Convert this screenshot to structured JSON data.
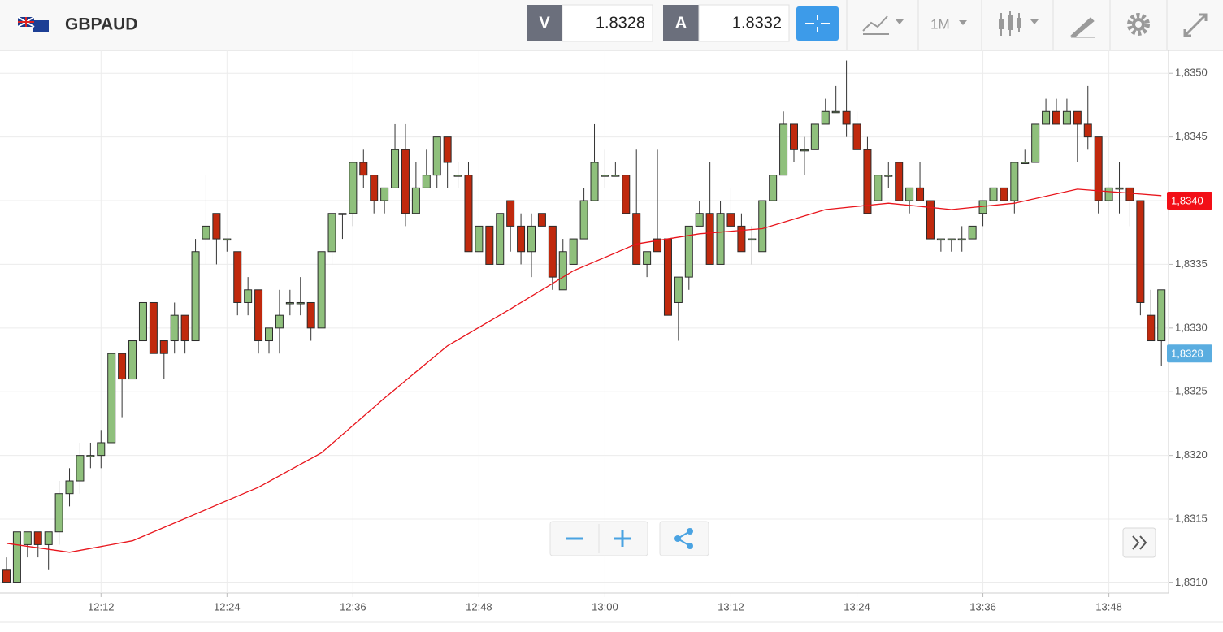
{
  "header": {
    "pair": "GBPAUD",
    "bid_label": "V",
    "bid": "1.8328",
    "ask_label": "A",
    "ask": "1.8332",
    "timeframe": "1M"
  },
  "chart_data": {
    "type": "candlestick",
    "x": [
      "12:03",
      "12:04",
      "12:05",
      "12:06",
      "12:07",
      "12:08",
      "12:09",
      "12:10",
      "12:11",
      "12:12",
      "12:13",
      "12:14",
      "12:15",
      "12:16",
      "12:17",
      "12:18",
      "12:19",
      "12:20",
      "12:21",
      "12:22",
      "12:23",
      "12:24",
      "12:25",
      "12:26",
      "12:27",
      "12:28",
      "12:29",
      "12:30",
      "12:31",
      "12:32",
      "12:33",
      "12:34",
      "12:35",
      "12:36",
      "12:37",
      "12:38",
      "12:39",
      "12:40",
      "12:41",
      "12:42",
      "12:43",
      "12:44",
      "12:45",
      "12:46",
      "12:47",
      "12:48",
      "12:49",
      "12:50",
      "12:51",
      "12:52",
      "12:53",
      "12:54",
      "12:55",
      "12:56",
      "12:57",
      "12:58",
      "12:59",
      "13:00",
      "13:01",
      "13:02",
      "13:03",
      "13:04",
      "13:05",
      "13:06",
      "13:07",
      "13:08",
      "13:09",
      "13:10",
      "13:11",
      "13:12",
      "13:13",
      "13:14",
      "13:15",
      "13:16",
      "13:17",
      "13:18",
      "13:19",
      "13:20",
      "13:21",
      "13:22",
      "13:23",
      "13:24",
      "13:25",
      "13:26",
      "13:27",
      "13:28",
      "13:29",
      "13:30",
      "13:31",
      "13:32",
      "13:33",
      "13:34",
      "13:35",
      "13:36",
      "13:37",
      "13:38",
      "13:39",
      "13:40",
      "13:41",
      "13:42",
      "13:43",
      "13:44",
      "13:45",
      "13:46",
      "13:47",
      "13:48",
      "13:49",
      "13:50",
      "13:51",
      "13:52",
      "13:53"
    ],
    "open": [
      1.8311,
      1.831,
      1.8313,
      1.8314,
      1.8313,
      1.8314,
      1.8317,
      1.8318,
      1.832,
      1.832,
      1.8321,
      1.8328,
      1.8326,
      1.8329,
      1.8332,
      1.8329,
      1.8329,
      1.8331,
      1.8329,
      1.8337,
      1.8339,
      1.8337,
      1.8336,
      1.8332,
      1.8333,
      1.8329,
      1.833,
      1.8332,
      1.8332,
      1.8332,
      1.833,
      1.8336,
      1.8339,
      1.8339,
      1.8343,
      1.8342,
      1.834,
      1.8341,
      1.8344,
      1.8339,
      1.8341,
      1.8342,
      1.8345,
      1.8342,
      1.8342,
      1.8336,
      1.8338,
      1.8335,
      1.834,
      1.8338,
      1.8336,
      1.8339,
      1.8338,
      1.8333,
      1.8335,
      1.8337,
      1.834,
      1.8342,
      1.8342,
      1.8342,
      1.8339,
      1.8335,
      1.8337,
      1.8337,
      1.8332,
      1.8334,
      1.8338,
      1.8339,
      1.8335,
      1.8339,
      1.8338,
      1.8337,
      1.8336,
      1.834,
      1.8342,
      1.8346,
      1.8344,
      1.8344,
      1.8346,
      1.8347,
      1.8347,
      1.8346,
      1.8344,
      1.834,
      1.8342,
      1.8343,
      1.834,
      1.8341,
      1.834,
      1.8337,
      1.8337,
      1.8337,
      1.8337,
      1.8339,
      1.834,
      1.8341,
      1.834,
      1.8343,
      1.8343,
      1.8346,
      1.8347,
      1.8346,
      1.8347,
      1.8346,
      1.8345,
      1.834,
      1.8341,
      1.8341,
      1.834,
      1.8331,
      1.8329
    ],
    "high": [
      1.8312,
      1.8314,
      1.8314,
      1.8314,
      1.8314,
      1.8318,
      1.8319,
      1.8321,
      1.8321,
      1.8322,
      1.8328,
      1.8328,
      1.8329,
      1.8332,
      1.8332,
      1.8329,
      1.8332,
      1.8331,
      1.8337,
      1.8342,
      1.8339,
      1.8337,
      1.8336,
      1.8334,
      1.8333,
      1.833,
      1.8333,
      1.8333,
      1.8334,
      1.8332,
      1.8336,
      1.8339,
      1.8339,
      1.8343,
      1.8344,
      1.8342,
      1.8341,
      1.8346,
      1.8346,
      1.8343,
      1.8344,
      1.8345,
      1.8345,
      1.8343,
      1.8343,
      1.8338,
      1.8338,
      1.8339,
      1.834,
      1.8339,
      1.8339,
      1.8339,
      1.8338,
      1.8337,
      1.8337,
      1.8341,
      1.8346,
      1.8344,
      1.8343,
      1.8342,
      1.8344,
      1.8336,
      1.8344,
      1.8337,
      1.8334,
      1.8338,
      1.834,
      1.8343,
      1.834,
      1.8341,
      1.8339,
      1.8338,
      1.834,
      1.8342,
      1.8347,
      1.8346,
      1.8345,
      1.8346,
      1.8348,
      1.8349,
      1.8351,
      1.8347,
      1.8345,
      1.8342,
      1.8343,
      1.8343,
      1.8341,
      1.8343,
      1.834,
      1.8337,
      1.8337,
      1.8338,
      1.8338,
      1.834,
      1.8341,
      1.8341,
      1.8343,
      1.8344,
      1.8346,
      1.8348,
      1.8348,
      1.8348,
      1.8347,
      1.8349,
      1.8345,
      1.8341,
      1.8343,
      1.8341,
      1.834,
      1.8333,
      1.8333
    ],
    "low": [
      1.831,
      1.831,
      1.8312,
      1.8312,
      1.8311,
      1.8313,
      1.8316,
      1.8317,
      1.8319,
      1.8319,
      1.8321,
      1.8323,
      1.8326,
      1.8329,
      1.8328,
      1.8326,
      1.8328,
      1.8328,
      1.8329,
      1.8335,
      1.8335,
      1.8336,
      1.8331,
      1.8331,
      1.8328,
      1.8328,
      1.8328,
      1.8331,
      1.8331,
      1.8329,
      1.833,
      1.8335,
      1.8337,
      1.8338,
      1.8341,
      1.8339,
      1.8339,
      1.8341,
      1.8338,
      1.8339,
      1.8341,
      1.8341,
      1.8341,
      1.8341,
      1.8336,
      1.8336,
      1.8335,
      1.8335,
      1.8336,
      1.8335,
      1.8334,
      1.8338,
      1.8333,
      1.8333,
      1.8335,
      1.8337,
      1.834,
      1.8341,
      1.8342,
      1.8339,
      1.8335,
      1.8334,
      1.8336,
      1.8331,
      1.8329,
      1.8333,
      1.8338,
      1.8335,
      1.8335,
      1.8338,
      1.8336,
      1.8335,
      1.8336,
      1.834,
      1.8342,
      1.8343,
      1.8342,
      1.8344,
      1.8346,
      1.8347,
      1.8345,
      1.8344,
      1.8339,
      1.834,
      1.8341,
      1.834,
      1.8339,
      1.834,
      1.8337,
      1.8336,
      1.8336,
      1.8336,
      1.8337,
      1.8338,
      1.834,
      1.834,
      1.8339,
      1.8343,
      1.8343,
      1.8346,
      1.8346,
      1.8346,
      1.8343,
      1.8344,
      1.8339,
      1.834,
      1.8339,
      1.8338,
      1.8331,
      1.8329,
      1.8327
    ],
    "close": [
      1.831,
      1.8314,
      1.8314,
      1.8313,
      1.8314,
      1.8317,
      1.8318,
      1.832,
      1.832,
      1.8321,
      1.8328,
      1.8326,
      1.8329,
      1.8332,
      1.8328,
      1.8328,
      1.8331,
      1.8329,
      1.8336,
      1.8338,
      1.8337,
      1.8337,
      1.8332,
      1.8333,
      1.8329,
      1.833,
      1.8331,
      1.8332,
      1.8332,
      1.833,
      1.8336,
      1.8339,
      1.8339,
      1.8343,
      1.8342,
      1.834,
      1.8341,
      1.8344,
      1.8339,
      1.8341,
      1.8342,
      1.8345,
      1.8343,
      1.8342,
      1.8336,
      1.8338,
      1.8335,
      1.8339,
      1.8338,
      1.8336,
      1.8338,
      1.8338,
      1.8334,
      1.8336,
      1.8337,
      1.834,
      1.8343,
      1.8342,
      1.8342,
      1.8339,
      1.8335,
      1.8336,
      1.8336,
      1.8331,
      1.8334,
      1.8338,
      1.8339,
      1.8335,
      1.8339,
      1.8338,
      1.8336,
      1.8337,
      1.834,
      1.8342,
      1.8346,
      1.8344,
      1.8344,
      1.8346,
      1.8347,
      1.8347,
      1.8346,
      1.8344,
      1.8339,
      1.8342,
      1.8342,
      1.834,
      1.8341,
      1.834,
      1.8337,
      1.8337,
      1.8337,
      1.8337,
      1.8338,
      1.834,
      1.8341,
      1.834,
      1.8343,
      1.8343,
      1.8346,
      1.8347,
      1.8346,
      1.8347,
      1.8346,
      1.8345,
      1.834,
      1.8341,
      1.8341,
      1.834,
      1.8332,
      1.8329,
      1.8333
    ],
    "up_color": "#8fc07c",
    "down_color": "#c0290d",
    "ma": {
      "color": "#e8141b",
      "x": [
        "12:03",
        "12:09",
        "12:15",
        "12:21",
        "12:27",
        "12:33",
        "12:39",
        "12:45",
        "12:51",
        "12:57",
        "13:03",
        "13:09",
        "13:15",
        "13:21",
        "13:27",
        "13:33",
        "13:39",
        "13:45",
        "13:53"
      ],
      "values": [
        1.83131,
        1.83124,
        1.83133,
        1.83154,
        1.83175,
        1.83202,
        1.83245,
        1.83286,
        1.83315,
        1.83345,
        1.83366,
        1.83374,
        1.83378,
        1.83393,
        1.83398,
        1.83393,
        1.83398,
        1.83409,
        1.83404
      ]
    },
    "price_tags": [
      {
        "value": 1.834,
        "label": "1,8340",
        "color": "#f20f17"
      },
      {
        "value": 1.8328,
        "label": "1,8328",
        "color": "#5aade0"
      }
    ],
    "ylim": [
      1.83092,
      1.83518
    ],
    "yticks": [
      {
        "value": 1.831,
        "label": "1,8310"
      },
      {
        "value": 1.8315,
        "label": "1,8315"
      },
      {
        "value": 1.832,
        "label": "1,8320"
      },
      {
        "value": 1.8325,
        "label": "1,8325"
      },
      {
        "value": 1.833,
        "label": "1,8330"
      },
      {
        "value": 1.8335,
        "label": "1,8335"
      },
      {
        "value": 1.834,
        "label": "1,8340"
      },
      {
        "value": 1.8345,
        "label": "1,8345"
      },
      {
        "value": 1.835,
        "label": "1,8350"
      }
    ],
    "xticks": [
      "12:12",
      "12:24",
      "12:36",
      "12:48",
      "13:00",
      "13:12",
      "13:24",
      "13:36",
      "13:48"
    ],
    "grid": true
  }
}
